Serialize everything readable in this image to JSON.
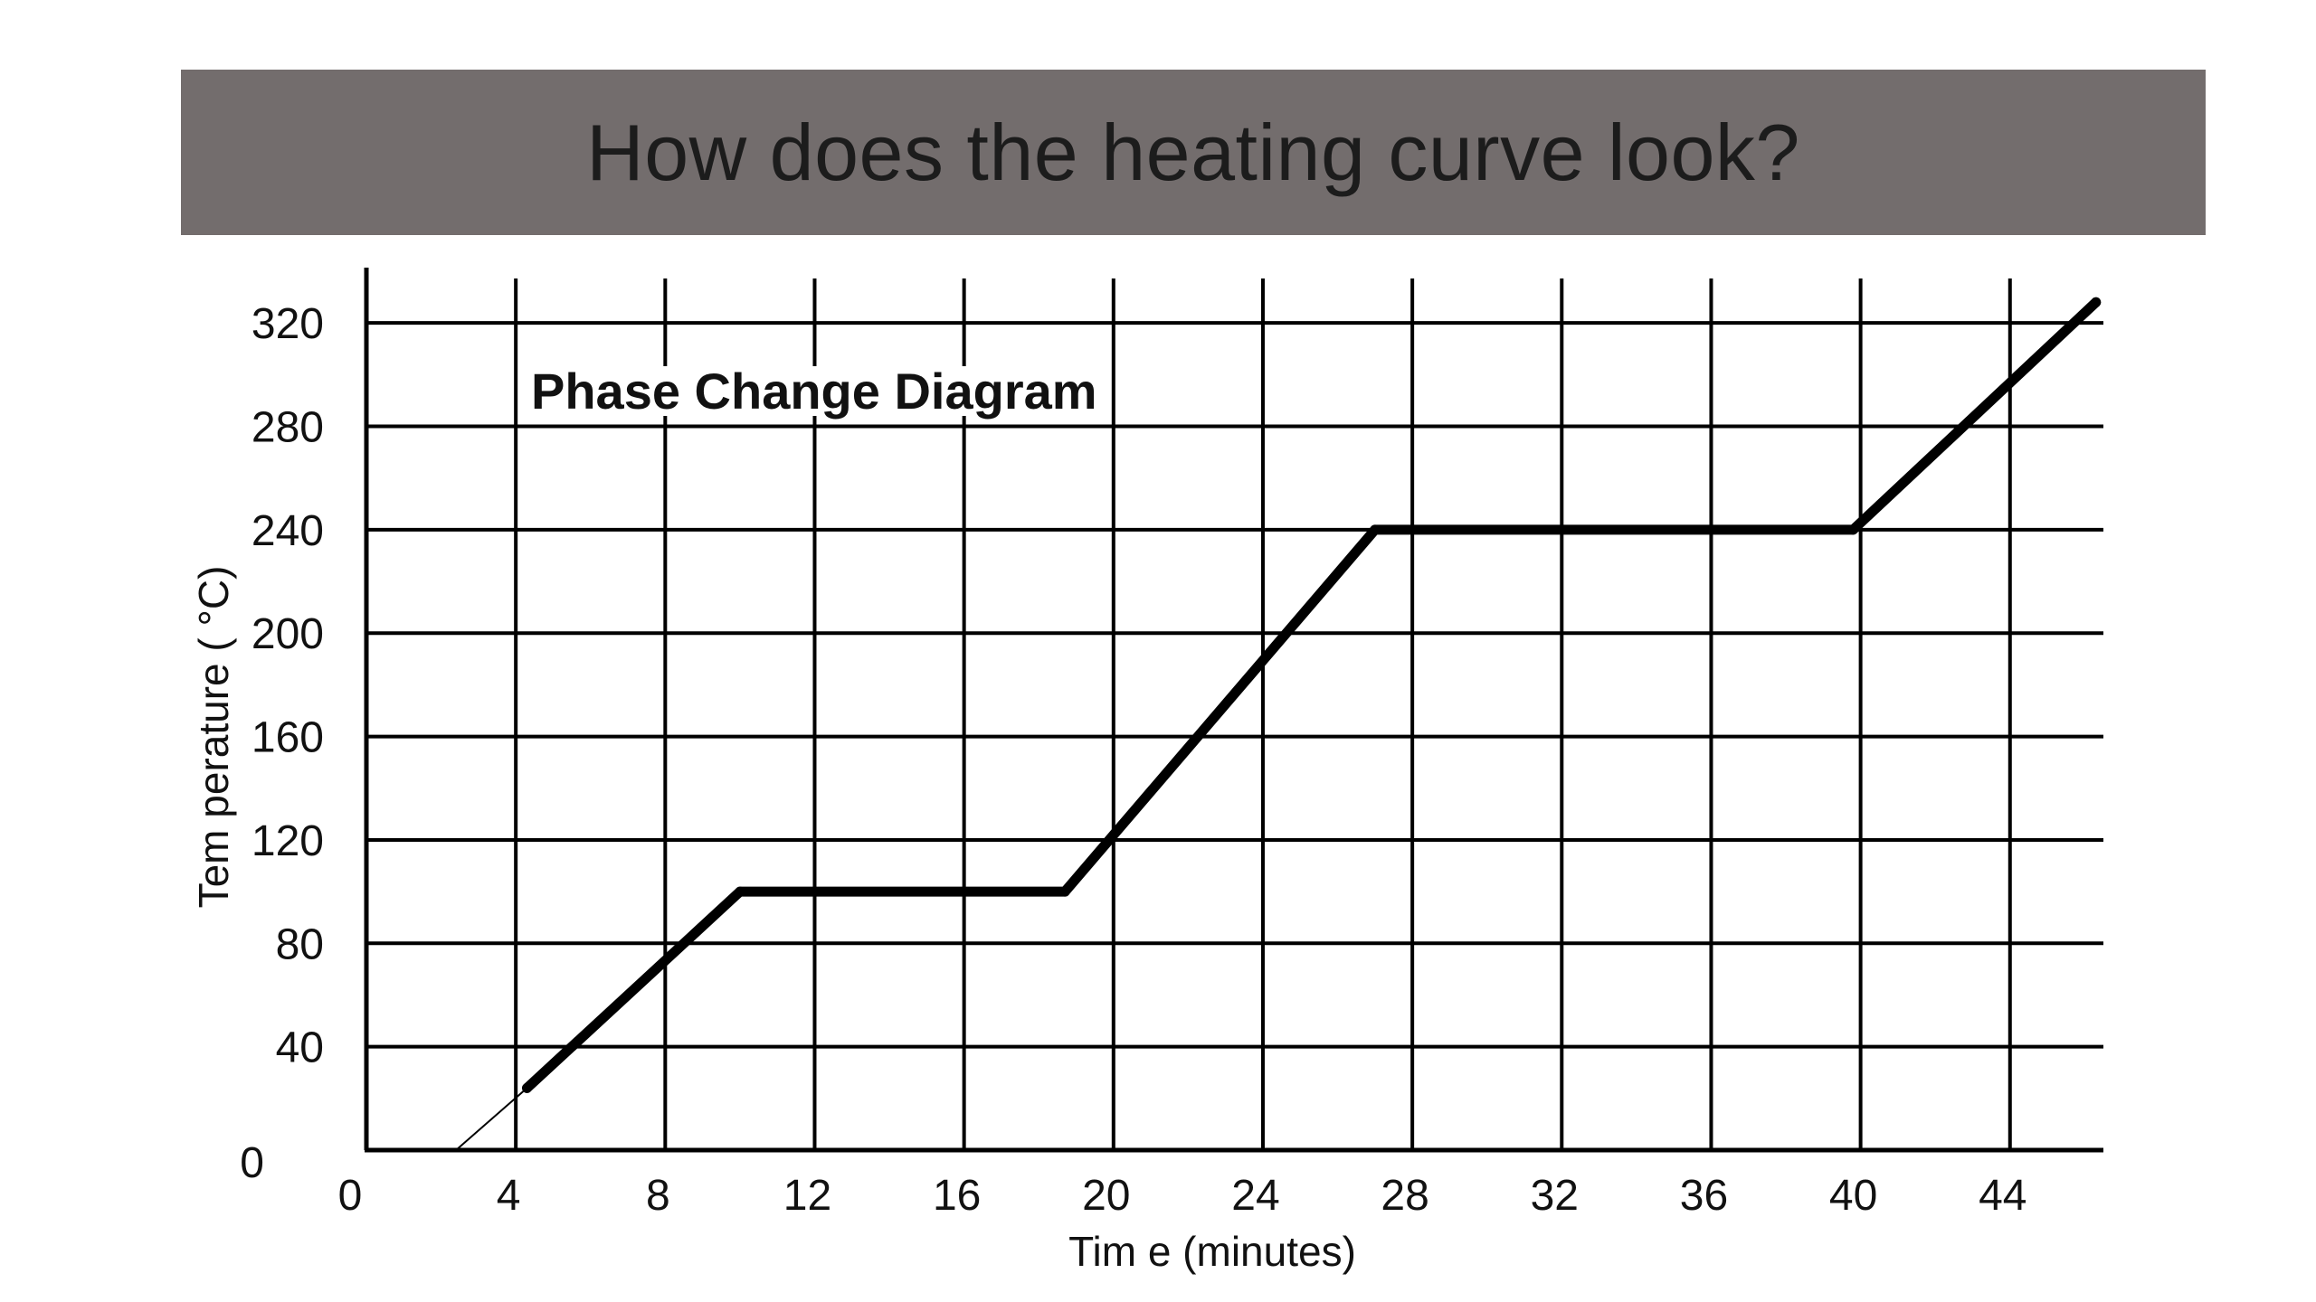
{
  "slide": {
    "title": "How does the heating curve look?",
    "title_bar_color": "#736d6d"
  },
  "chart_data": {
    "type": "line",
    "title": "Phase Change Diagram",
    "xlabel": "Tim e (minutes)",
    "ylabel": "Tem perature ( °C)",
    "xlim": [
      0,
      46.5
    ],
    "ylim": [
      0,
      340
    ],
    "x_ticks": [
      0,
      4,
      8,
      12,
      16,
      20,
      24,
      28,
      32,
      36,
      40,
      44
    ],
    "y_ticks": [
      0,
      40,
      80,
      120,
      160,
      200,
      240,
      280,
      320
    ],
    "grid": true,
    "series": [
      {
        "values": [
          {
            "x": 4.3,
            "y": 24
          },
          {
            "x": 10,
            "y": 100
          },
          {
            "x": 18.7,
            "y": 100
          },
          {
            "x": 27,
            "y": 240
          },
          {
            "x": 39.8,
            "y": 240
          },
          {
            "x": 46.3,
            "y": 328
          }
        ],
        "color": "#000000"
      }
    ],
    "extrapolation": [
      {
        "x": 2.4,
        "y": 0
      },
      {
        "x": 4.3,
        "y": 24
      }
    ]
  }
}
